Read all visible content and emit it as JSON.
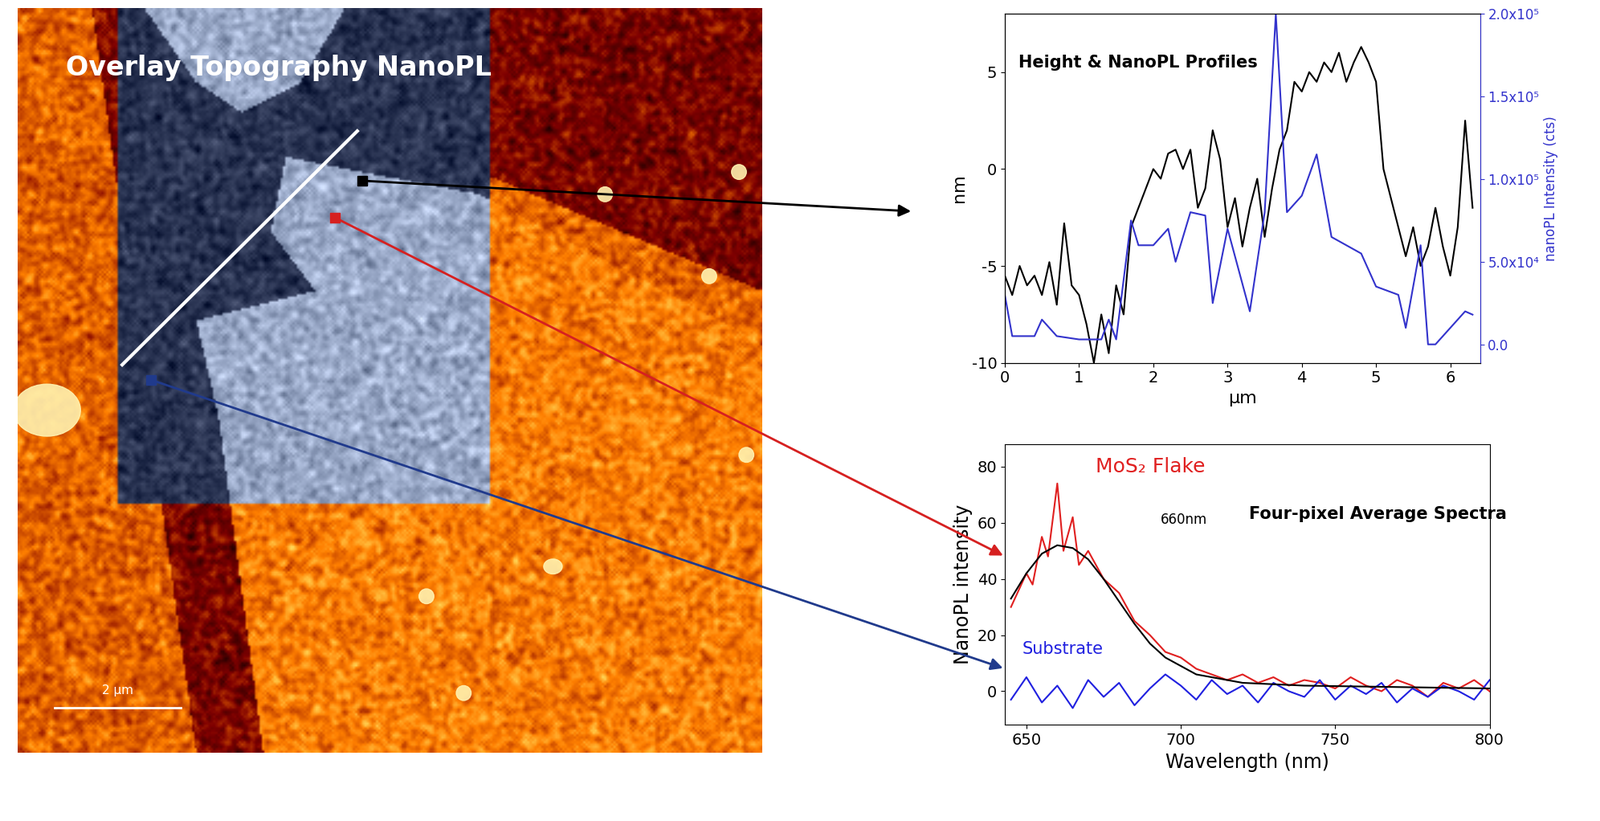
{
  "image": {
    "title": "Overlay Topography NanoPL",
    "scale_bar": "2 µm"
  },
  "chart_data": [
    {
      "type": "line",
      "title": "Height & NanoPL Profiles",
      "x_label": "µm",
      "y_label": "nm",
      "y2_label": "nanoPL Intensity (cts)",
      "xlim": [
        0,
        6.4
      ],
      "xticks": [
        0,
        1,
        2,
        3,
        4,
        5,
        6
      ],
      "ylim": [
        -10,
        8
      ],
      "yticks": [
        -10,
        -5,
        0,
        5
      ],
      "y2lim": [
        -11200,
        200000
      ],
      "y2ticks": [
        {
          "value": 0,
          "label": "0.0"
        },
        {
          "value": 50000,
          "label": "5.0x10⁴"
        },
        {
          "value": 100000,
          "label": "1.0x10⁵"
        },
        {
          "value": 150000,
          "label": "1.5x10⁵"
        },
        {
          "value": 200000,
          "label": "2.0x10⁵"
        }
      ],
      "series": [
        {
          "color": "#000000",
          "x": [
            0,
            0.1,
            0.2,
            0.3,
            0.4,
            0.5,
            0.6,
            0.7,
            0.8,
            0.9,
            1.0,
            1.1,
            1.2,
            1.3,
            1.4,
            1.5,
            1.6,
            1.7,
            1.8,
            1.9,
            2.0,
            2.1,
            2.2,
            2.3,
            2.4,
            2.5,
            2.6,
            2.7,
            2.8,
            2.9,
            3.0,
            3.1,
            3.2,
            3.3,
            3.4,
            3.5,
            3.6,
            3.7,
            3.8,
            3.9,
            4.0,
            4.1,
            4.2,
            4.3,
            4.4,
            4.5,
            4.6,
            4.7,
            4.8,
            4.9,
            5.0,
            5.1,
            5.2,
            5.3,
            5.4,
            5.5,
            5.6,
            5.7,
            5.8,
            5.9,
            6.0,
            6.1,
            6.2,
            6.3
          ],
          "values": [
            -5.5,
            -6.5,
            -5.0,
            -6.0,
            -5.5,
            -6.5,
            -4.8,
            -7.0,
            -2.8,
            -6.0,
            -6.5,
            -8.0,
            -10,
            -7.5,
            -9.5,
            -6.0,
            -7.5,
            -3.0,
            -2.0,
            -1.0,
            0.0,
            -0.5,
            0.8,
            1.0,
            0.0,
            1.0,
            -2.0,
            -1.0,
            2.0,
            0.5,
            -3.0,
            -1.5,
            -4.0,
            -2.0,
            -0.5,
            -3.5,
            -1.0,
            1.0,
            2.0,
            4.5,
            4.0,
            5.0,
            4.5,
            5.5,
            5.0,
            6.0,
            4.5,
            5.5,
            6.3,
            5.5,
            4.5,
            0.0,
            -1.5,
            -3.0,
            -4.5,
            -3.0,
            -5.0,
            -4.0,
            -2.0,
            -4.0,
            -5.5,
            -3.0,
            2.5,
            -2.0
          ]
        },
        {
          "color": "#3333cc",
          "axis": "y2",
          "x": [
            0,
            0.1,
            0.2,
            0.4,
            0.5,
            0.7,
            1.0,
            1.3,
            1.4,
            1.5,
            1.7,
            1.8,
            2.0,
            2.2,
            2.3,
            2.5,
            2.7,
            2.8,
            3.0,
            3.3,
            3.5,
            3.65,
            3.8,
            4.0,
            4.2,
            4.4,
            4.6,
            4.8,
            5.0,
            5.3,
            5.4,
            5.6,
            5.7,
            5.8,
            6.0,
            6.2,
            6.3
          ],
          "values": [
            30000,
            5000,
            5000,
            5000,
            15000,
            5000,
            3000,
            3000,
            15000,
            3000,
            75000,
            60000,
            60000,
            70000,
            50000,
            80000,
            78000,
            25000,
            70000,
            20000,
            80000,
            200000,
            80000,
            90000,
            115000,
            65000,
            60000,
            55000,
            35000,
            30000,
            10000,
            60000,
            0,
            0,
            10000,
            20000,
            18000
          ]
        }
      ]
    },
    {
      "type": "line",
      "title": "Four-pixel Average Spectra",
      "x_label": "Wavelength (nm)",
      "y_label": "NanoPL intensity",
      "annotations": [
        "660nm"
      ],
      "xlim": [
        643,
        800
      ],
      "xticks": [
        650,
        700,
        750,
        800
      ],
      "ylim": [
        -12,
        88
      ],
      "yticks": [
        0,
        20,
        40,
        60,
        80
      ],
      "series": [
        {
          "name": "MoS₂ Flake",
          "color": "#e02020",
          "x": [
            645,
            650,
            652,
            655,
            657,
            660,
            662,
            665,
            667,
            670,
            675,
            680,
            685,
            690,
            695,
            700,
            705,
            710,
            715,
            720,
            725,
            730,
            735,
            740,
            745,
            750,
            755,
            760,
            765,
            770,
            775,
            780,
            785,
            790,
            795,
            800
          ],
          "values": [
            30,
            42,
            38,
            55,
            48,
            74,
            50,
            62,
            45,
            50,
            40,
            35,
            25,
            20,
            14,
            12,
            8,
            6,
            4,
            6,
            3,
            5,
            2,
            4,
            3,
            1,
            5,
            2,
            0,
            4,
            2,
            -2,
            3,
            1,
            4,
            0
          ]
        },
        {
          "name": "Substrate",
          "color": "#2020e0",
          "x": [
            645,
            650,
            655,
            660,
            665,
            670,
            675,
            680,
            685,
            690,
            695,
            700,
            705,
            710,
            715,
            720,
            725,
            730,
            735,
            740,
            745,
            750,
            755,
            760,
            765,
            770,
            775,
            780,
            785,
            790,
            795,
            800
          ],
          "values": [
            -3,
            5,
            -4,
            2,
            -6,
            4,
            -2,
            3,
            -5,
            1,
            6,
            2,
            -3,
            4,
            -1,
            2,
            -4,
            3,
            0,
            -2,
            4,
            -3,
            2,
            -1,
            3,
            -4,
            1,
            -2,
            2,
            0,
            -3,
            4
          ]
        },
        {
          "color": "#000000",
          "x": [
            645,
            650,
            655,
            660,
            665,
            670,
            675,
            680,
            685,
            690,
            695,
            700,
            705,
            710,
            715,
            720,
            740,
            800
          ],
          "values": [
            33,
            42,
            49,
            52,
            51,
            47,
            40,
            32,
            24,
            17,
            12,
            9,
            6,
            5,
            4,
            3,
            2,
            1
          ]
        }
      ]
    }
  ]
}
